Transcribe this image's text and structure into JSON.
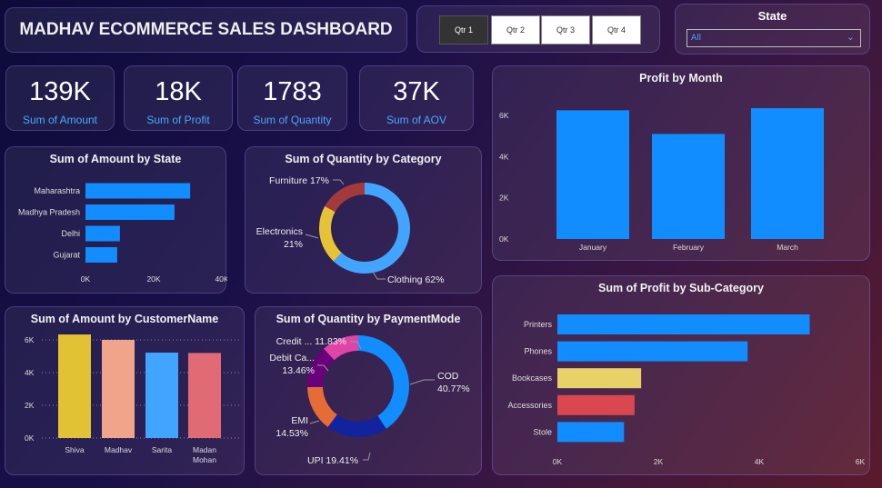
{
  "header": {
    "title": "MADHAV ECOMMERCE SALES DASHBOARD"
  },
  "quarter_slicer": {
    "options": [
      "Qtr 1",
      "Qtr 2",
      "Qtr 3",
      "Qtr 4"
    ],
    "selected": "Qtr 1"
  },
  "state_filter": {
    "label": "State",
    "value": "All"
  },
  "kpis": [
    {
      "value": "139K",
      "label": "Sum of Amount"
    },
    {
      "value": "18K",
      "label": "Sum of Profit"
    },
    {
      "value": "1783",
      "label": "Sum of Quantity"
    },
    {
      "value": "37K",
      "label": "Sum of AOV"
    }
  ],
  "colors": {
    "accent": "#118dff",
    "label": "#4da6ff"
  },
  "chart_data": [
    {
      "id": "profit_month",
      "type": "bar",
      "title": "Profit by Month",
      "categories": [
        "January",
        "February",
        "March"
      ],
      "values": [
        6250,
        5100,
        6350
      ],
      "colors": [
        "#118dff",
        "#118dff",
        "#118dff"
      ],
      "ylim": [
        0,
        6000
      ],
      "yticks": [
        "0K",
        "2K",
        "4K",
        "6K"
      ],
      "grid": false
    },
    {
      "id": "amount_state",
      "type": "bar",
      "orientation": "horizontal",
      "title": "Sum of Amount by State",
      "categories": [
        "Maharashtra",
        "Madhya Pradesh",
        "Delhi",
        "Gujarat"
      ],
      "values": [
        30700,
        26100,
        10100,
        9300
      ],
      "colors": [
        "#118dff",
        "#118dff",
        "#118dff",
        "#118dff"
      ],
      "xlim": [
        0,
        40000
      ],
      "xticks": [
        "0K",
        "20K",
        "40K"
      ],
      "grid": false
    },
    {
      "id": "qty_category",
      "type": "pie",
      "donut": true,
      "title": "Sum of Quantity by Category",
      "categories": [
        "Clothing",
        "Electronics",
        "Furniture"
      ],
      "values": [
        62,
        21,
        17
      ],
      "labels": [
        "Clothing 62%",
        "Electronics 21%",
        "Furniture 17%"
      ],
      "colors": [
        "#41a4ff",
        "#e6c237",
        "#a23a3d"
      ]
    },
    {
      "id": "amount_customer",
      "type": "bar",
      "title": "Sum of Amount by CustomerName",
      "categories": [
        "Shiva",
        "Madhav",
        "Sarita",
        "Madan Mohan"
      ],
      "values": [
        6330,
        6000,
        5220,
        5200
      ],
      "colors": [
        "#e0c234",
        "#f0a58a",
        "#41a4ff",
        "#e06b74"
      ],
      "ylim": [
        0,
        6000
      ],
      "yticks": [
        "0K",
        "2K",
        "4K",
        "6K"
      ],
      "grid": true
    },
    {
      "id": "qty_payment",
      "type": "pie",
      "donut": true,
      "title": "Sum of Quantity by PaymentMode",
      "categories": [
        "COD",
        "UPI",
        "EMI",
        "Debit Ca...",
        "Credit ..."
      ],
      "values": [
        40.77,
        19.41,
        14.53,
        13.46,
        11.83
      ],
      "labels": [
        "COD 40.77%",
        "UPI 19.41%",
        "EMI 14.53%",
        "Debit Ca... 13.46%",
        "Credit ... 11.83%"
      ],
      "colors": [
        "#118dff",
        "#12239e",
        "#e66c37",
        "#6b007b",
        "#e044a7"
      ]
    },
    {
      "id": "profit_subcat",
      "type": "bar",
      "orientation": "horizontal",
      "title": "Sum of Profit by Sub-Category",
      "categories": [
        "Printers",
        "Phones",
        "Bookcases",
        "Accessories",
        "Stole"
      ],
      "values": [
        5000,
        3770,
        1660,
        1530,
        1320
      ],
      "colors": [
        "#118dff",
        "#118dff",
        "#e8d166",
        "#d9474f",
        "#118dff"
      ],
      "xlim": [
        0,
        6000
      ],
      "xticks": [
        "0K",
        "2K",
        "4K",
        "6K"
      ],
      "grid": false
    }
  ]
}
